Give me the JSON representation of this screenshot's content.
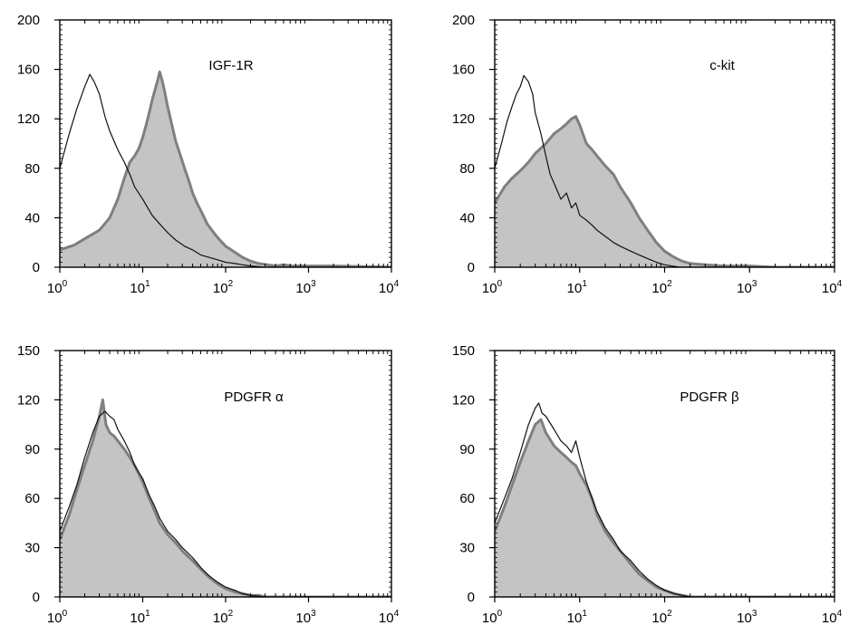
{
  "colors": {
    "control_line": "#111111",
    "stained_fill": "#c4c4c4",
    "stained_line": "#7f7f7f",
    "axis": "#000000"
  },
  "chart_data": [
    {
      "type": "area",
      "label": "IGF-1R",
      "x_scale": "log",
      "xlim": [
        1,
        10000
      ],
      "ylim": [
        0,
        200
      ],
      "x_ticks": [
        {
          "base": "10",
          "exp": "0"
        },
        {
          "base": "10",
          "exp": "1"
        },
        {
          "base": "10",
          "exp": "2"
        },
        {
          "base": "10",
          "exp": "3"
        },
        {
          "base": "10",
          "exp": "4"
        }
      ],
      "y_ticks": [
        "0",
        "40",
        "80",
        "120",
        "160",
        "200"
      ],
      "grid": false,
      "series": [
        {
          "role": "control",
          "style": "line",
          "x": [
            1,
            1.3,
            1.6,
            2.0,
            2.3,
            2.6,
            3.0,
            3.5,
            4.0,
            5.0,
            6.0,
            7.0,
            8.0,
            10,
            13,
            16,
            20,
            25,
            32,
            40,
            50,
            63,
            80,
            100,
            130,
            160,
            200,
            300,
            500,
            1000,
            10000
          ],
          "y": [
            80,
            108,
            128,
            146,
            156,
            150,
            140,
            122,
            110,
            95,
            85,
            75,
            65,
            55,
            42,
            35,
            28,
            22,
            17,
            14,
            10,
            8,
            6,
            4,
            3,
            2,
            1,
            0,
            0,
            0,
            0
          ]
        },
        {
          "role": "stained",
          "style": "filled",
          "x": [
            1,
            1.5,
            2,
            3,
            4,
            5,
            6,
            7,
            8,
            9,
            10,
            11,
            12,
            13,
            14,
            15,
            16,
            17,
            18,
            20,
            22,
            25,
            28,
            32,
            36,
            40,
            45,
            50,
            60,
            70,
            80,
            100,
            130,
            160,
            200,
            250,
            320,
            400,
            500,
            630,
            800,
            1000,
            1300,
            2000,
            10000
          ],
          "y": [
            14,
            18,
            23,
            30,
            40,
            55,
            72,
            85,
            90,
            96,
            105,
            115,
            125,
            135,
            143,
            150,
            158,
            152,
            145,
            130,
            118,
            102,
            92,
            80,
            70,
            60,
            52,
            46,
            35,
            29,
            24,
            17,
            12,
            8,
            5,
            3,
            2,
            1,
            2,
            1,
            1,
            1,
            1,
            1,
            0
          ]
        }
      ]
    },
    {
      "type": "area",
      "label": "c-kit",
      "x_scale": "log",
      "xlim": [
        1,
        10000
      ],
      "ylim": [
        0,
        200
      ],
      "x_ticks": [
        {
          "base": "10",
          "exp": "0"
        },
        {
          "base": "10",
          "exp": "1"
        },
        {
          "base": "10",
          "exp": "2"
        },
        {
          "base": "10",
          "exp": "3"
        },
        {
          "base": "10",
          "exp": "4"
        }
      ],
      "y_ticks": [
        "0",
        "40",
        "80",
        "120",
        "160",
        "200"
      ],
      "grid": false,
      "series": [
        {
          "role": "control",
          "style": "line",
          "x": [
            1,
            1.2,
            1.4,
            1.6,
            1.8,
            2.0,
            2.2,
            2.5,
            2.8,
            3.0,
            3.5,
            4.0,
            4.5,
            5,
            6,
            7,
            8,
            9,
            10,
            12,
            14,
            16,
            20,
            25,
            30,
            40,
            50,
            63,
            80,
            100,
            150,
            10000
          ],
          "y": [
            80,
            100,
            118,
            130,
            140,
            146,
            155,
            150,
            140,
            125,
            108,
            90,
            75,
            68,
            55,
            60,
            48,
            52,
            42,
            38,
            34,
            30,
            25,
            20,
            17,
            13,
            10,
            7,
            4,
            2,
            0,
            0
          ]
        },
        {
          "role": "stained",
          "style": "filled",
          "x": [
            1,
            1.3,
            1.6,
            2,
            2.5,
            3,
            4,
            5,
            6,
            7,
            8,
            9,
            10,
            12,
            14,
            16,
            20,
            25,
            30,
            35,
            40,
            50,
            63,
            80,
            100,
            130,
            160,
            200,
            300,
            500,
            1000,
            2000,
            10000
          ],
          "y": [
            52,
            65,
            72,
            78,
            85,
            92,
            100,
            108,
            112,
            116,
            120,
            122,
            115,
            100,
            95,
            90,
            82,
            75,
            65,
            58,
            52,
            40,
            30,
            20,
            13,
            8,
            5,
            3,
            2,
            1,
            1,
            0,
            0
          ]
        }
      ]
    },
    {
      "type": "area",
      "label": "PDGFR α",
      "x_scale": "log",
      "xlim": [
        1,
        10000
      ],
      "ylim": [
        0,
        150
      ],
      "x_ticks": [
        {
          "base": "10",
          "exp": "0"
        },
        {
          "base": "10",
          "exp": "1"
        },
        {
          "base": "10",
          "exp": "2"
        },
        {
          "base": "10",
          "exp": "3"
        },
        {
          "base": "10",
          "exp": "4"
        }
      ],
      "y_ticks": [
        "0",
        "30",
        "60",
        "90",
        "120",
        "150"
      ],
      "grid": false,
      "series": [
        {
          "role": "control",
          "style": "line",
          "x": [
            1,
            1.3,
            1.6,
            2,
            2.5,
            3,
            3.5,
            4,
            4.5,
            5,
            6,
            7,
            8,
            10,
            12,
            14,
            16,
            20,
            25,
            30,
            40,
            50,
            63,
            80,
            100,
            130,
            160,
            200,
            300,
            10000
          ],
          "y": [
            40,
            55,
            68,
            85,
            100,
            110,
            113,
            110,
            108,
            102,
            95,
            88,
            80,
            72,
            62,
            55,
            48,
            40,
            35,
            30,
            24,
            18,
            13,
            9,
            6,
            4,
            2,
            1,
            0,
            0
          ]
        },
        {
          "role": "stained",
          "style": "filled",
          "x": [
            1,
            1.3,
            1.6,
            2,
            2.5,
            3,
            3.3,
            3.6,
            4,
            4.5,
            5,
            6,
            7,
            8,
            10,
            12,
            14,
            16,
            20,
            25,
            30,
            40,
            50,
            63,
            80,
            100,
            130,
            160,
            200,
            250,
            300,
            400,
            10000
          ],
          "y": [
            35,
            50,
            65,
            80,
            95,
            110,
            120,
            105,
            100,
            98,
            95,
            90,
            85,
            80,
            70,
            60,
            52,
            45,
            38,
            33,
            28,
            22,
            17,
            12,
            8,
            5,
            3,
            2,
            1,
            1,
            0,
            0,
            0
          ]
        }
      ]
    },
    {
      "type": "area",
      "label": "PDGFR β",
      "x_scale": "log",
      "xlim": [
        1,
        10000
      ],
      "ylim": [
        0,
        150
      ],
      "x_ticks": [
        {
          "base": "10",
          "exp": "0"
        },
        {
          "base": "10",
          "exp": "1"
        },
        {
          "base": "10",
          "exp": "2"
        },
        {
          "base": "10",
          "exp": "3"
        },
        {
          "base": "10",
          "exp": "4"
        }
      ],
      "y_ticks": [
        "0",
        "30",
        "60",
        "90",
        "120",
        "150"
      ],
      "grid": false,
      "series": [
        {
          "role": "control",
          "style": "line",
          "x": [
            1,
            1.3,
            1.6,
            2,
            2.5,
            3,
            3.3,
            3.6,
            4,
            5,
            6,
            7,
            8,
            9,
            10,
            12,
            14,
            16,
            20,
            25,
            30,
            40,
            50,
            63,
            80,
            100,
            130,
            160,
            200,
            300,
            10000
          ],
          "y": [
            45,
            60,
            72,
            88,
            105,
            115,
            118,
            112,
            110,
            102,
            95,
            92,
            88,
            95,
            85,
            70,
            60,
            52,
            42,
            35,
            28,
            22,
            16,
            11,
            7,
            4,
            2,
            1,
            0,
            0,
            0
          ]
        },
        {
          "role": "stained",
          "style": "filled",
          "x": [
            1,
            1.3,
            1.6,
            2,
            2.5,
            3,
            3.5,
            4,
            5,
            6,
            7,
            8,
            9,
            10,
            12,
            14,
            16,
            20,
            25,
            30,
            40,
            50,
            63,
            80,
            100,
            130,
            160,
            200,
            300,
            10000
          ],
          "y": [
            40,
            55,
            68,
            82,
            95,
            105,
            108,
            100,
            92,
            88,
            85,
            82,
            80,
            75,
            68,
            60,
            50,
            40,
            33,
            28,
            20,
            14,
            10,
            6,
            4,
            2,
            1,
            0,
            0,
            0
          ]
        }
      ]
    }
  ]
}
